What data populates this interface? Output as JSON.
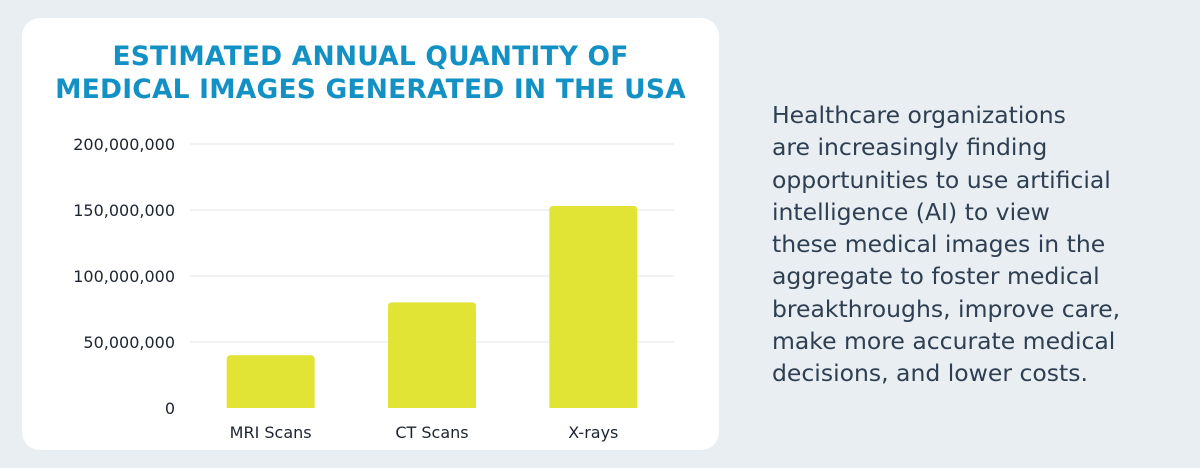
{
  "colors": {
    "background": "#e9eef3",
    "card": "#ffffff",
    "title": "#1391c4",
    "bar": "#e1e434",
    "grid": "#e3e6ea",
    "text": "#2e3f52"
  },
  "chart_data": {
    "type": "bar",
    "title_lines": [
      "ESTIMATED ANNUAL QUANTITY OF",
      "MEDICAL IMAGES GENERATED IN THE USA"
    ],
    "categories": [
      "MRI Scans",
      "CT Scans",
      "X-rays"
    ],
    "values": [
      40000000,
      80000000,
      153000000
    ],
    "ylim": [
      0,
      200000000
    ],
    "yticks": [
      0,
      50000000,
      100000000,
      150000000,
      200000000
    ],
    "ytick_labels": [
      "0",
      "50,000,000",
      "100,000,000",
      "150,000,000",
      "200,000,000"
    ],
    "grid": true,
    "legend": "none"
  },
  "description": {
    "lines": [
      "Healthcare organizations",
      "are increasingly finding",
      "opportunities to use artificial",
      "intelligence (AI) to view",
      "these medical images in the",
      "aggregate to foster medical",
      "breakthroughs, improve care,",
      "make more accurate medical",
      "decisions, and lower costs."
    ]
  }
}
